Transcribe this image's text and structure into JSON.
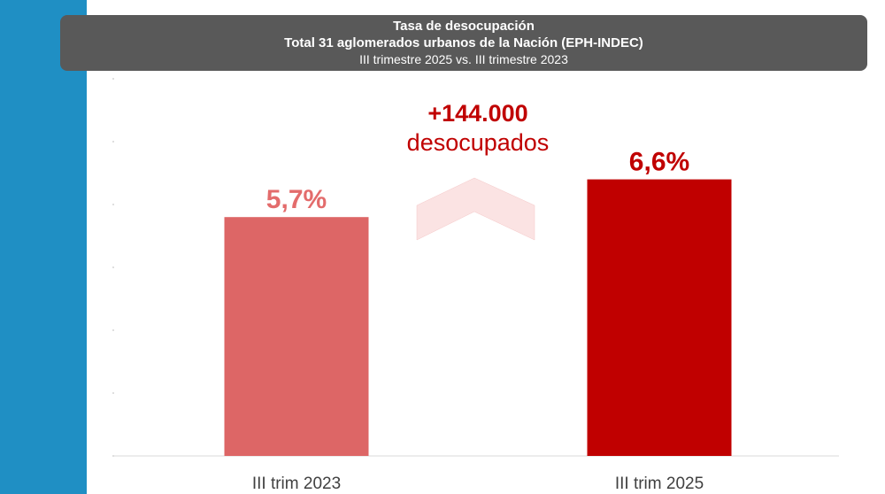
{
  "header": {
    "title": "Tasa de desocupación",
    "subtitle": "Total 31 aglomerados urbanos de la Nación (EPH-INDEC)",
    "period": "III trimestre 2025 vs. III trimestre 2023"
  },
  "annotation": {
    "value": "+144.000",
    "label": "desocupados"
  },
  "colors": {
    "sidebar": "#1f8fc4",
    "header_bg": "#595959",
    "bar_2023": "#dd6666",
    "bar_2025": "#c00000",
    "label_2023": "#e36c6c",
    "label_2025": "#c00000",
    "arrow": "#fbe3e3"
  },
  "chart_data": {
    "type": "bar",
    "title": "Tasa de desocupación",
    "categories": [
      "III trim 2023",
      "III trim 2025"
    ],
    "values": [
      5.7,
      6.6
    ],
    "data_labels": [
      "5,7%",
      "6,6%"
    ],
    "ylim": [
      0,
      9
    ],
    "y_ticks_labeled": false,
    "grid": false,
    "legend": "none"
  }
}
